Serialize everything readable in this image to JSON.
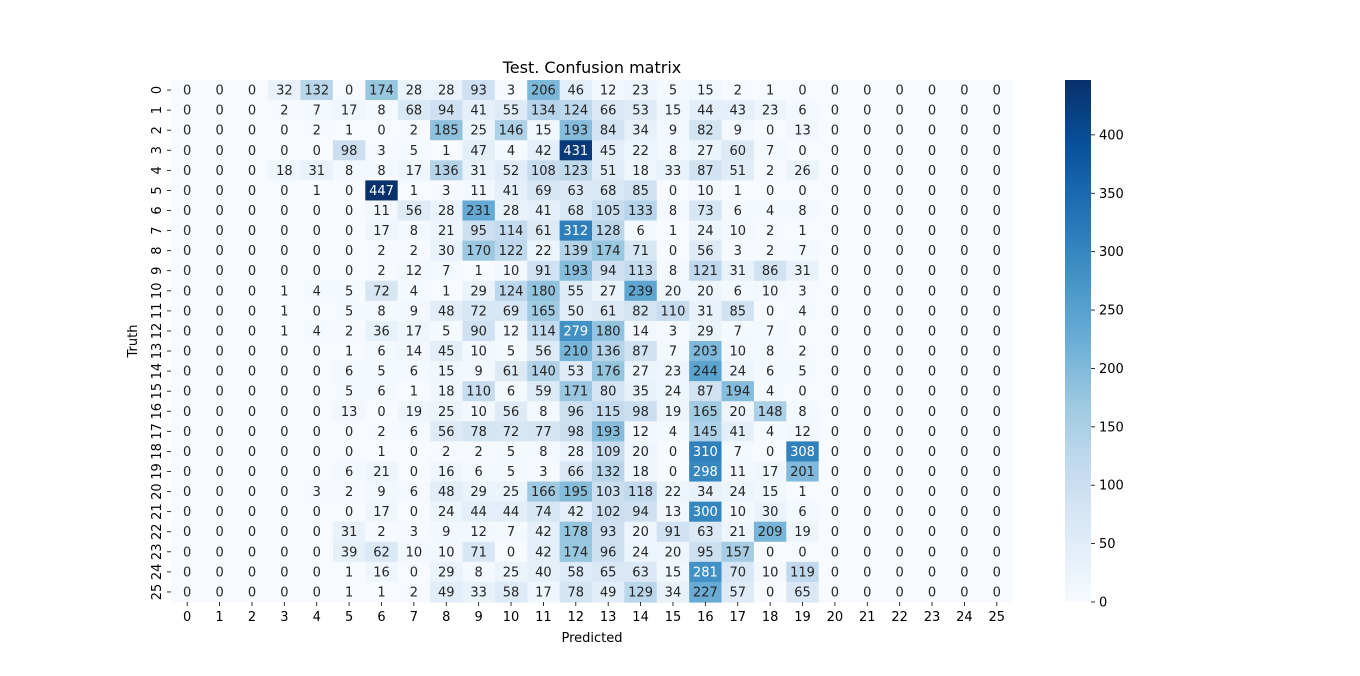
{
  "chart_data": {
    "type": "heatmap",
    "title": "Test. Confusion matrix",
    "xlabel": "Predicted",
    "ylabel": "Truth",
    "x_categories": [
      "0",
      "1",
      "2",
      "3",
      "4",
      "5",
      "6",
      "7",
      "8",
      "9",
      "10",
      "11",
      "12",
      "13",
      "14",
      "15",
      "16",
      "17",
      "18",
      "19",
      "20",
      "21",
      "22",
      "23",
      "24",
      "25"
    ],
    "y_categories": [
      "0",
      "1",
      "2",
      "3",
      "4",
      "5",
      "6",
      "7",
      "8",
      "9",
      "10",
      "11",
      "12",
      "13",
      "14",
      "15",
      "16",
      "17",
      "18",
      "19",
      "20",
      "21",
      "22",
      "23",
      "24",
      "25"
    ],
    "values": [
      [
        0,
        0,
        0,
        32,
        132,
        0,
        174,
        28,
        28,
        93,
        3,
        206,
        46,
        12,
        23,
        5,
        15,
        2,
        1,
        0,
        0,
        0,
        0,
        0,
        0,
        0
      ],
      [
        0,
        0,
        0,
        2,
        7,
        17,
        8,
        68,
        94,
        41,
        55,
        134,
        124,
        66,
        53,
        15,
        44,
        43,
        23,
        6,
        0,
        0,
        0,
        0,
        0,
        0
      ],
      [
        0,
        0,
        0,
        0,
        2,
        1,
        0,
        2,
        185,
        25,
        146,
        15,
        193,
        84,
        34,
        9,
        82,
        9,
        0,
        13,
        0,
        0,
        0,
        0,
        0,
        0
      ],
      [
        0,
        0,
        0,
        0,
        0,
        98,
        3,
        5,
        1,
        47,
        4,
        42,
        431,
        45,
        22,
        8,
        27,
        60,
        7,
        0,
        0,
        0,
        0,
        0,
        0,
        0
      ],
      [
        0,
        0,
        0,
        18,
        31,
        8,
        8,
        17,
        136,
        31,
        52,
        108,
        123,
        51,
        18,
        33,
        87,
        51,
        2,
        26,
        0,
        0,
        0,
        0,
        0,
        0
      ],
      [
        0,
        0,
        0,
        0,
        1,
        0,
        447,
        1,
        3,
        11,
        41,
        69,
        63,
        68,
        85,
        0,
        10,
        1,
        0,
        0,
        0,
        0,
        0,
        0,
        0,
        0
      ],
      [
        0,
        0,
        0,
        0,
        0,
        0,
        11,
        56,
        28,
        231,
        28,
        41,
        68,
        105,
        133,
        8,
        73,
        6,
        4,
        8,
        0,
        0,
        0,
        0,
        0,
        0
      ],
      [
        0,
        0,
        0,
        0,
        0,
        0,
        17,
        8,
        21,
        95,
        114,
        61,
        312,
        128,
        6,
        1,
        24,
        10,
        2,
        1,
        0,
        0,
        0,
        0,
        0,
        0
      ],
      [
        0,
        0,
        0,
        0,
        0,
        0,
        2,
        2,
        30,
        170,
        122,
        22,
        139,
        174,
        71,
        0,
        56,
        3,
        2,
        7,
        0,
        0,
        0,
        0,
        0,
        0
      ],
      [
        0,
        0,
        0,
        0,
        0,
        0,
        2,
        12,
        7,
        1,
        10,
        91,
        193,
        94,
        113,
        8,
        121,
        31,
        86,
        31,
        0,
        0,
        0,
        0,
        0,
        0
      ],
      [
        0,
        0,
        0,
        1,
        4,
        5,
        72,
        4,
        1,
        29,
        124,
        180,
        55,
        27,
        239,
        20,
        20,
        6,
        10,
        3,
        0,
        0,
        0,
        0,
        0,
        0
      ],
      [
        0,
        0,
        0,
        1,
        0,
        5,
        8,
        9,
        48,
        72,
        69,
        165,
        50,
        61,
        82,
        110,
        31,
        85,
        0,
        4,
        0,
        0,
        0,
        0,
        0,
        0
      ],
      [
        0,
        0,
        0,
        1,
        4,
        2,
        36,
        17,
        5,
        90,
        12,
        114,
        279,
        180,
        14,
        3,
        29,
        7,
        7,
        0,
        0,
        0,
        0,
        0,
        0,
        0
      ],
      [
        0,
        0,
        0,
        0,
        0,
        1,
        6,
        14,
        45,
        10,
        5,
        56,
        210,
        136,
        87,
        7,
        203,
        10,
        8,
        2,
        0,
        0,
        0,
        0,
        0,
        0
      ],
      [
        0,
        0,
        0,
        0,
        0,
        6,
        5,
        6,
        15,
        9,
        61,
        140,
        53,
        176,
        27,
        23,
        244,
        24,
        6,
        5,
        0,
        0,
        0,
        0,
        0,
        0
      ],
      [
        0,
        0,
        0,
        0,
        0,
        5,
        6,
        1,
        18,
        110,
        6,
        59,
        171,
        80,
        35,
        24,
        87,
        194,
        4,
        0,
        0,
        0,
        0,
        0,
        0,
        0
      ],
      [
        0,
        0,
        0,
        0,
        0,
        13,
        0,
        19,
        25,
        10,
        56,
        8,
        96,
        115,
        98,
        19,
        165,
        20,
        148,
        8,
        0,
        0,
        0,
        0,
        0,
        0
      ],
      [
        0,
        0,
        0,
        0,
        0,
        0,
        2,
        6,
        56,
        78,
        72,
        77,
        98,
        193,
        12,
        4,
        145,
        41,
        4,
        12,
        0,
        0,
        0,
        0,
        0,
        0
      ],
      [
        0,
        0,
        0,
        0,
        0,
        0,
        1,
        0,
        2,
        2,
        5,
        8,
        28,
        109,
        20,
        0,
        310,
        7,
        0,
        308,
        0,
        0,
        0,
        0,
        0,
        0
      ],
      [
        0,
        0,
        0,
        0,
        0,
        6,
        21,
        0,
        16,
        6,
        5,
        3,
        66,
        132,
        18,
        0,
        298,
        11,
        17,
        201,
        0,
        0,
        0,
        0,
        0,
        0
      ],
      [
        0,
        0,
        0,
        0,
        3,
        2,
        9,
        6,
        48,
        29,
        25,
        166,
        195,
        103,
        118,
        22,
        34,
        24,
        15,
        1,
        0,
        0,
        0,
        0,
        0,
        0
      ],
      [
        0,
        0,
        0,
        0,
        0,
        0,
        17,
        0,
        24,
        44,
        44,
        74,
        42,
        102,
        94,
        13,
        300,
        10,
        30,
        6,
        0,
        0,
        0,
        0,
        0,
        0
      ],
      [
        0,
        0,
        0,
        0,
        0,
        31,
        2,
        3,
        9,
        12,
        7,
        42,
        178,
        93,
        20,
        91,
        63,
        21,
        209,
        19,
        0,
        0,
        0,
        0,
        0,
        0
      ],
      [
        0,
        0,
        0,
        0,
        0,
        39,
        62,
        10,
        10,
        71,
        0,
        42,
        174,
        96,
        24,
        20,
        95,
        157,
        0,
        0,
        0,
        0,
        0,
        0,
        0,
        0
      ],
      [
        0,
        0,
        0,
        0,
        0,
        1,
        16,
        0,
        29,
        8,
        25,
        40,
        58,
        65,
        63,
        15,
        281,
        70,
        10,
        119,
        0,
        0,
        0,
        0,
        0,
        0
      ],
      [
        0,
        0,
        0,
        0,
        0,
        1,
        1,
        2,
        49,
        33,
        58,
        17,
        78,
        49,
        129,
        34,
        227,
        57,
        0,
        65,
        0,
        0,
        0,
        0,
        0,
        0
      ]
    ],
    "colorbar": {
      "min": 0,
      "max": 447,
      "ticks": [
        0,
        50,
        100,
        150,
        200,
        250,
        300,
        350,
        400
      ],
      "colormap": "Blues"
    },
    "grid": false,
    "legend": "none"
  }
}
